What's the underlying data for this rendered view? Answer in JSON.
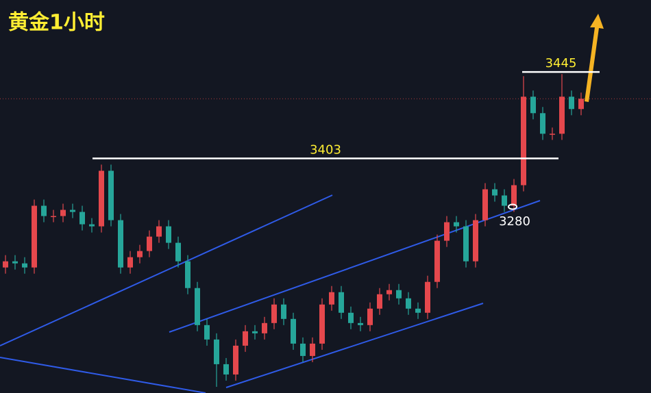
{
  "chart_data": {
    "type": "candlestick",
    "title": "黄金1小时",
    "up_color": "#e5484d",
    "down_color": "#26a69a",
    "ylim": [
      3289,
      3480
    ],
    "categories": [
      null,
      null,
      null,
      null,
      null,
      null,
      null,
      null,
      null,
      null,
      null,
      null,
      null,
      null,
      null,
      null,
      null,
      null,
      null,
      null,
      null,
      null,
      null,
      null,
      null,
      null,
      null,
      null,
      null,
      null,
      null,
      null,
      null,
      null,
      null,
      null,
      null,
      null,
      null,
      null,
      null,
      null,
      null,
      null,
      null,
      null,
      null,
      null,
      null,
      null,
      null,
      null,
      null,
      null,
      null,
      null,
      null,
      null,
      null,
      null,
      null
    ],
    "open": [
      3350,
      3353,
      3352,
      3350,
      3380,
      3375,
      3375,
      3378,
      3377,
      3371,
      3370,
      3397,
      3373,
      3350,
      3355,
      3358,
      3365,
      3370,
      3362,
      3353,
      3340,
      3322,
      3315,
      3303,
      3298,
      3312,
      3319,
      3318,
      3323,
      3332,
      3325,
      3313,
      3307,
      3313,
      3332,
      3338,
      3328,
      3323,
      3322,
      3330,
      3337,
      3339,
      3335,
      3330,
      3328,
      3343,
      3363,
      3372,
      3370,
      3353,
      3373,
      3388,
      3385,
      3380,
      3390,
      3433,
      3425,
      3415,
      3415,
      3433,
      3427
    ],
    "high": [
      3356,
      3356,
      3355,
      3383,
      3383,
      3378,
      3381,
      3381,
      3380,
      3374,
      3400,
      3400,
      3376,
      3358,
      3361,
      3368,
      3373,
      3373,
      3365,
      3356,
      3343,
      3325,
      3318,
      3306,
      3315,
      3322,
      3322,
      3326,
      3335,
      3335,
      3328,
      3316,
      3316,
      3335,
      3341,
      3341,
      3331,
      3326,
      3333,
      3340,
      3342,
      3342,
      3338,
      3333,
      3346,
      3366,
      3375,
      3375,
      3373,
      3376,
      3391,
      3391,
      3388,
      3393,
      3443,
      3436,
      3428,
      3418,
      3444,
      3436,
      3435
    ],
    "low": [
      3347,
      3349,
      3347,
      3347,
      3372,
      3372,
      3372,
      3374,
      3368,
      3367,
      3367,
      3370,
      3347,
      3347,
      3352,
      3355,
      3362,
      3359,
      3350,
      3337,
      3319,
      3312,
      3292,
      3295,
      3295,
      3309,
      3315,
      3315,
      3320,
      3322,
      3310,
      3304,
      3304,
      3310,
      3329,
      3325,
      3320,
      3319,
      3319,
      3327,
      3334,
      3332,
      3327,
      3325,
      3325,
      3340,
      3360,
      3367,
      3350,
      3350,
      3370,
      3382,
      3377,
      3377,
      3387,
      3422,
      3412,
      3412,
      3412,
      3424,
      3424
    ],
    "close": [
      3353,
      3352,
      3350,
      3380,
      3375,
      3375,
      3378,
      3377,
      3371,
      3370,
      3397,
      3373,
      3350,
      3355,
      3358,
      3365,
      3370,
      3362,
      3353,
      3340,
      3322,
      3315,
      3303,
      3298,
      3312,
      3319,
      3318,
      3323,
      3332,
      3325,
      3313,
      3307,
      3313,
      3332,
      3338,
      3328,
      3323,
      3322,
      3330,
      3337,
      3339,
      3335,
      3330,
      3328,
      3343,
      3363,
      3372,
      3370,
      3353,
      3373,
      3388,
      3385,
      3380,
      3390,
      3433,
      3425,
      3415,
      3415,
      3433,
      3427,
      3432
    ],
    "levels": [
      3445,
      3403
    ],
    "support_label": 3280
  }
}
